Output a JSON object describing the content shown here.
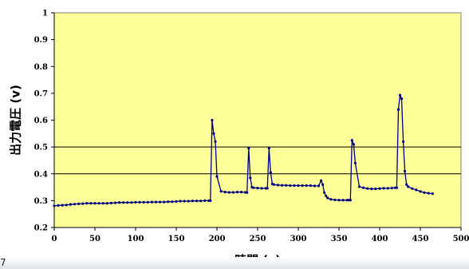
{
  "chart_data": {
    "type": "line",
    "title": "",
    "xlabel": "時間 (s)",
    "ylabel": "出力電圧 (v)",
    "xlim": [
      0,
      500
    ],
    "ylim": [
      0.2,
      1
    ],
    "x_ticks": [
      "0",
      "50",
      "100",
      "150",
      "200",
      "250",
      "300",
      "350",
      "400",
      "450",
      "500"
    ],
    "y_ticks": [
      "0.2",
      "0.3",
      "0.4",
      "0.5",
      "0.6",
      "0.7",
      "0.8",
      "0.9",
      "1"
    ],
    "reference_lines": [
      0.5,
      0.4
    ],
    "grid": false,
    "legend": "none",
    "series": [
      {
        "color": "#000080",
        "x": [
          0,
          5,
          10,
          15,
          20,
          25,
          30,
          35,
          40,
          45,
          50,
          55,
          60,
          65,
          70,
          75,
          80,
          85,
          90,
          95,
          100,
          105,
          110,
          115,
          120,
          125,
          130,
          135,
          140,
          145,
          150,
          155,
          160,
          165,
          170,
          175,
          180,
          185,
          190,
          192,
          194,
          196,
          198,
          200,
          205,
          210,
          215,
          220,
          225,
          230,
          235,
          237,
          239,
          241,
          243,
          245,
          250,
          255,
          260,
          262,
          264,
          266,
          268,
          270,
          275,
          280,
          285,
          290,
          295,
          300,
          305,
          310,
          315,
          320,
          325,
          328,
          330,
          332,
          334,
          336,
          340,
          345,
          350,
          355,
          360,
          362,
          364,
          366,
          368,
          370,
          375,
          380,
          385,
          390,
          395,
          400,
          405,
          410,
          415,
          419,
          421,
          423,
          425,
          427,
          429,
          431,
          433,
          435,
          440,
          445,
          450,
          455,
          460,
          465
        ],
        "y": [
          0.281,
          0.282,
          0.283,
          0.284,
          0.286,
          0.287,
          0.288,
          0.289,
          0.29,
          0.29,
          0.29,
          0.29,
          0.29,
          0.29,
          0.291,
          0.292,
          0.293,
          0.293,
          0.293,
          0.293,
          0.294,
          0.294,
          0.294,
          0.294,
          0.295,
          0.295,
          0.295,
          0.295,
          0.296,
          0.296,
          0.297,
          0.298,
          0.298,
          0.298,
          0.299,
          0.299,
          0.299,
          0.3,
          0.3,
          0.3,
          0.6,
          0.55,
          0.52,
          0.39,
          0.335,
          0.332,
          0.331,
          0.331,
          0.332,
          0.332,
          0.331,
          0.33,
          0.495,
          0.385,
          0.35,
          0.348,
          0.347,
          0.346,
          0.346,
          0.346,
          0.495,
          0.405,
          0.362,
          0.36,
          0.358,
          0.357,
          0.357,
          0.356,
          0.356,
          0.356,
          0.356,
          0.356,
          0.356,
          0.355,
          0.355,
          0.375,
          0.36,
          0.33,
          0.318,
          0.31,
          0.305,
          0.303,
          0.302,
          0.302,
          0.302,
          0.302,
          0.302,
          0.525,
          0.51,
          0.44,
          0.352,
          0.348,
          0.345,
          0.344,
          0.344,
          0.345,
          0.346,
          0.346,
          0.347,
          0.348,
          0.348,
          0.64,
          0.693,
          0.68,
          0.52,
          0.41,
          0.36,
          0.352,
          0.345,
          0.34,
          0.334,
          0.33,
          0.328,
          0.326
        ]
      }
    ]
  }
}
